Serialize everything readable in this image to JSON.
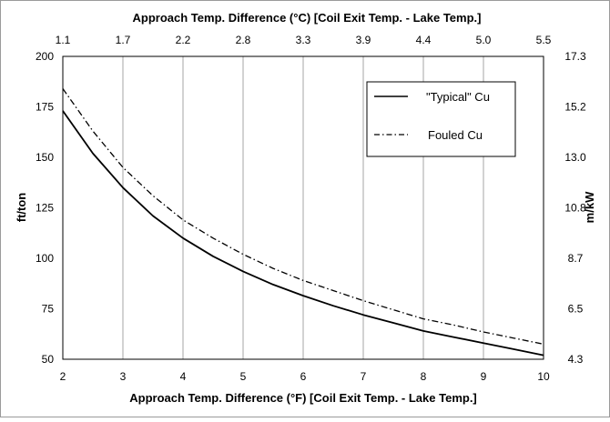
{
  "chart_data": {
    "type": "line",
    "top_axis_title": "Approach Temp. Difference (°C) [Coil Exit Temp. - Lake Temp.]",
    "bottom_axis_title": "Approach Temp. Difference (°F) [Coil Exit Temp. - Lake Temp.]",
    "left_axis_title": "ft/ton",
    "right_axis_title": "m/kW",
    "x_range": [
      2,
      10
    ],
    "y_range": [
      50,
      200
    ],
    "x_ticks": [
      "2",
      "3",
      "4",
      "5",
      "6",
      "7",
      "8",
      "9",
      "10"
    ],
    "top_ticks": [
      "1.1",
      "1.7",
      "2.2",
      "2.8",
      "3.3",
      "3.9",
      "4.4",
      "5.0",
      "5.5"
    ],
    "y_ticks": [
      "50",
      "75",
      "100",
      "125",
      "150",
      "175",
      "200"
    ],
    "right_ticks": [
      "4.3",
      "6.5",
      "8.7",
      "10.8",
      "13.0",
      "15.2",
      "17.3"
    ],
    "grid": "vertical",
    "legend_position": "top-right",
    "series": [
      {
        "name": "\"Typical\" Cu",
        "style": "solid",
        "color": "#000000",
        "x": [
          2,
          2.5,
          3,
          3.5,
          4,
          4.5,
          5,
          5.5,
          6,
          6.5,
          7,
          7.5,
          8,
          8.5,
          9,
          9.5,
          10
        ],
        "y": [
          173,
          152,
          135,
          121,
          110,
          101,
          93.5,
          87,
          81.5,
          76.5,
          72,
          68,
          64,
          61,
          58,
          55,
          52
        ]
      },
      {
        "name": "Fouled Cu",
        "style": "dash-dot",
        "color": "#000000",
        "x": [
          2,
          2.5,
          3,
          3.5,
          4,
          4.5,
          5,
          5.5,
          6,
          6.5,
          7,
          7.5,
          8,
          8.5,
          9,
          9.5,
          10
        ],
        "y": [
          184,
          163,
          145,
          131,
          119,
          110,
          102,
          95,
          89,
          84,
          79,
          74.5,
          70,
          67,
          63.5,
          60.5,
          57.5
        ]
      }
    ]
  }
}
